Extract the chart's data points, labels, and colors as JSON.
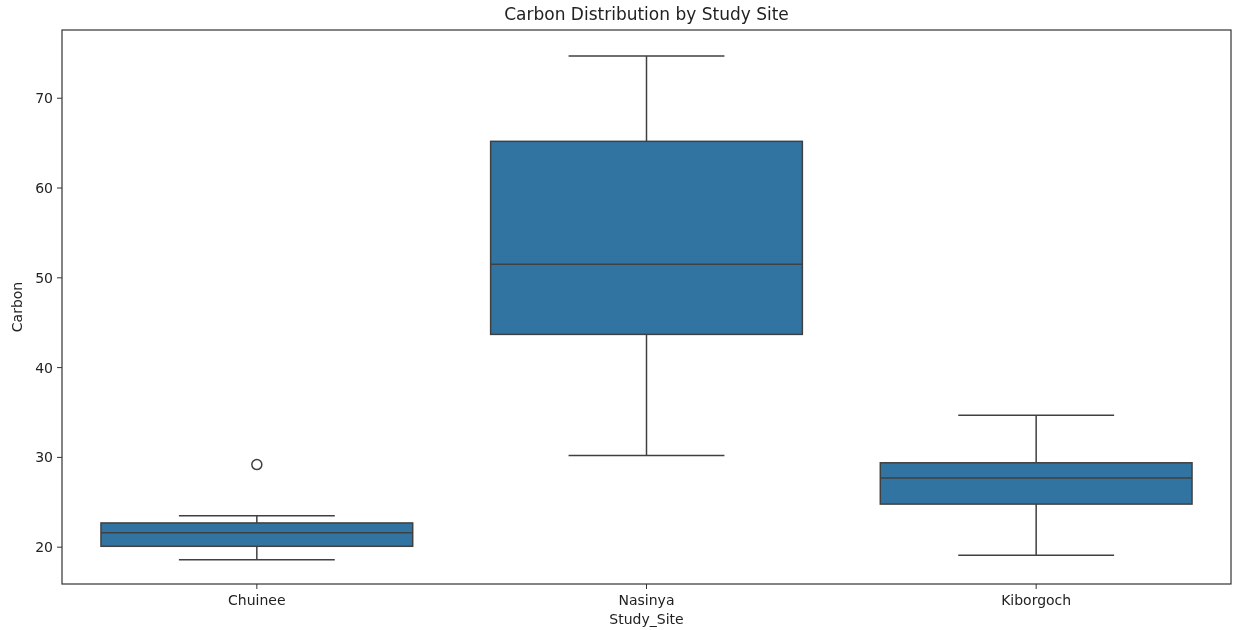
{
  "chart_data": {
    "type": "box",
    "title": "Carbon Distribution by Study Site",
    "xlabel": "Study_Site",
    "ylabel": "Carbon",
    "categories": [
      "Chuinee",
      "Nasinya",
      "Kiborgoch"
    ],
    "color": "#3274a1",
    "boxes": [
      {
        "low": 18.6,
        "q1": 20.1,
        "median": 21.6,
        "q3": 22.7,
        "high": 23.5,
        "outliers": [
          29.2
        ]
      },
      {
        "low": 30.2,
        "q1": 43.7,
        "median": 51.5,
        "q3": 65.2,
        "high": 74.7
      },
      {
        "low": 19.1,
        "q1": 24.8,
        "median": 27.7,
        "q3": 29.4,
        "high": 34.7
      }
    ],
    "ylim": [
      15.9,
      77.6
    ],
    "yticks": [
      20,
      30,
      40,
      50,
      60,
      70
    ],
    "grid": false
  }
}
